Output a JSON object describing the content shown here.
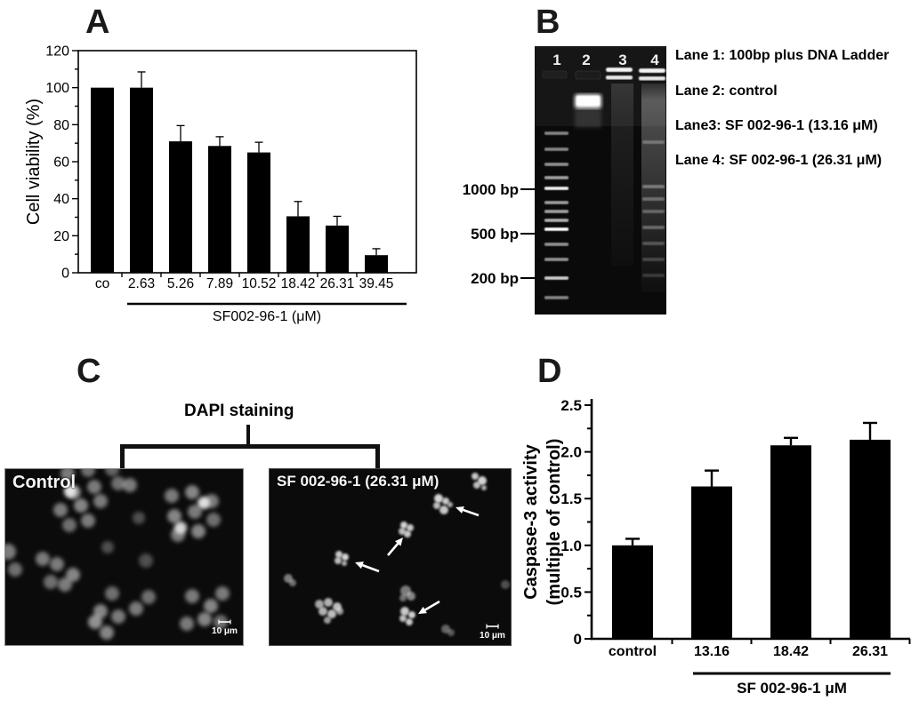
{
  "panels": {
    "a": "A",
    "b": "B",
    "c": "C",
    "d": "D"
  },
  "chart_data": [
    {
      "type": "bar",
      "panel": "A",
      "title": "",
      "categories": [
        "co",
        "2.63",
        "5.26",
        "7.89",
        "10.52",
        "18.42",
        "26.31",
        "39.45"
      ],
      "values": [
        100,
        100,
        71,
        68.5,
        65,
        30.5,
        25.5,
        9.5
      ],
      "errors": [
        0,
        8.5,
        8.5,
        5,
        5.5,
        8,
        5,
        3.5
      ],
      "xlabel": "SF002-96-1 (μM)",
      "ylabel": "Cell viability (%)",
      "ylim": [
        0,
        120
      ],
      "yticks": [
        "0",
        "20",
        "40",
        "60",
        "80",
        "100",
        "120"
      ],
      "ytick_step": 20,
      "minor_step": 10,
      "bar_color": "#000000",
      "frame": "box",
      "grid": false,
      "underline_groups": "2.63–39.45"
    },
    {
      "type": "bar",
      "panel": "D",
      "title": "",
      "categories": [
        "control",
        "13.16",
        "18.42",
        "26.31"
      ],
      "values": [
        1.0,
        1.63,
        2.07,
        2.13
      ],
      "errors": [
        0.07,
        0.17,
        0.08,
        0.18
      ],
      "xlabel": "SF 002-96-1 μM",
      "ylabel": "Caspase-3 activity\n(multiple of control)",
      "ylim": [
        0,
        2.5
      ],
      "yticks": [
        "0",
        "0.5",
        "1.0",
        "1.5",
        "2.0",
        "2.5"
      ],
      "ytick_step": 0.5,
      "minor_step": 0.25,
      "bar_color": "#000000",
      "frame": "open",
      "grid": false,
      "underline_groups": "13.16–26.31"
    }
  ],
  "panel_b": {
    "lane_numbers": [
      "1",
      "2",
      "3",
      "4"
    ],
    "markers": [
      {
        "label": "1000 bp"
      },
      {
        "label": "500 bp"
      },
      {
        "label": "200 bp"
      }
    ],
    "legend": [
      "Lane 1: 100bp plus DNA Ladder",
      "Lane 2: control",
      "Lane3: SF 002-96-1 (13.16 μM)",
      "Lane 4: SF 002-96-1 (26.31 μM)"
    ],
    "ladder_bands": [
      [
        98,
        0.5
      ],
      [
        116,
        0.5
      ],
      [
        133,
        0.55
      ],
      [
        148,
        0.62
      ],
      [
        160,
        0.95
      ],
      [
        176,
        0.6
      ],
      [
        186,
        0.62
      ],
      [
        196,
        0.68
      ],
      [
        206,
        1.0
      ],
      [
        223,
        0.55
      ],
      [
        240,
        0.55
      ],
      [
        261,
        0.8
      ],
      [
        283,
        0.5
      ]
    ],
    "lane4_bands": [
      [
        108,
        0.28
      ],
      [
        158,
        0.34
      ],
      [
        172,
        0.3
      ],
      [
        186,
        0.28
      ],
      [
        204,
        0.3
      ],
      [
        222,
        0.24
      ],
      [
        240,
        0.2
      ],
      [
        258,
        0.16
      ]
    ]
  },
  "panel_c": {
    "title": "DAPI staining",
    "control_label": "Control",
    "treated_label": "SF 002-96-1 (26.31 μM)",
    "scale_label": "10 μm",
    "control_nuclei": [
      [
        70,
        5,
        8,
        0.5
      ],
      [
        93,
        1,
        8,
        0.45
      ],
      [
        120,
        0,
        8,
        0.4
      ],
      [
        140,
        18,
        8,
        0.5
      ],
      [
        77,
        26,
        8,
        0.55
      ],
      [
        100,
        20,
        8,
        0.5
      ],
      [
        127,
        16,
        8,
        0.45
      ],
      [
        62,
        46,
        8,
        0.5
      ],
      [
        85,
        41,
        8,
        0.55
      ],
      [
        107,
        36,
        8,
        0.5
      ],
      [
        72,
        63,
        8,
        0.45
      ],
      [
        93,
        58,
        8,
        0.5
      ],
      [
        73,
        25,
        7,
        0.95
      ],
      [
        150,
        55,
        7,
        0.3
      ],
      [
        187,
        30,
        8,
        0.5
      ],
      [
        210,
        26,
        8,
        0.55
      ],
      [
        232,
        36,
        8,
        0.5
      ],
      [
        190,
        53,
        8,
        0.55
      ],
      [
        213,
        48,
        8,
        0.5
      ],
      [
        234,
        57,
        8,
        0.45
      ],
      [
        194,
        74,
        8,
        0.5
      ],
      [
        217,
        70,
        8,
        0.55
      ],
      [
        223,
        38,
        7,
        0.95
      ],
      [
        197,
        66,
        7,
        0.9
      ],
      [
        3,
        93,
        9,
        0.5
      ],
      [
        11,
        113,
        8,
        0.45
      ],
      [
        42,
        101,
        8,
        0.5
      ],
      [
        58,
        107,
        8,
        0.5
      ],
      [
        67,
        130,
        8,
        0.5
      ],
      [
        51,
        127,
        8,
        0.45
      ],
      [
        76,
        119,
        8,
        0.55
      ],
      [
        115,
        88,
        7,
        0.3
      ],
      [
        120,
        140,
        8,
        0.45
      ],
      [
        107,
        160,
        8,
        0.55
      ],
      [
        127,
        166,
        8,
        0.5
      ],
      [
        147,
        157,
        8,
        0.5
      ],
      [
        161,
        144,
        8,
        0.45
      ],
      [
        158,
        103,
        8,
        0.3
      ],
      [
        210,
        143,
        8,
        0.5
      ],
      [
        231,
        154,
        8,
        0.55
      ],
      [
        244,
        140,
        8,
        0.5
      ],
      [
        224,
        169,
        8,
        0.55
      ],
      [
        204,
        174,
        8,
        0.5
      ],
      [
        242,
        172,
        8,
        0.45
      ],
      [
        101,
        172,
        8,
        0.6
      ],
      [
        114,
        184,
        8,
        0.55
      ]
    ],
    "treated_fragments": [
      [
        231,
        8,
        4,
        0.85
      ],
      [
        239,
        13,
        5,
        0.9
      ],
      [
        233,
        18,
        4,
        0.8
      ],
      [
        241,
        21,
        3,
        0.75
      ],
      [
        190,
        33,
        5,
        0.9
      ],
      [
        198,
        36,
        4,
        0.85
      ],
      [
        188,
        41,
        4,
        0.8
      ],
      [
        196,
        46,
        5,
        0.85
      ],
      [
        203,
        40,
        3,
        0.75
      ],
      [
        151,
        63,
        4,
        0.9
      ],
      [
        158,
        66,
        4,
        0.85
      ],
      [
        149,
        70,
        4,
        0.8
      ],
      [
        155,
        73,
        4,
        0.85
      ],
      [
        78,
        96,
        4,
        0.85
      ],
      [
        85,
        99,
        4,
        0.9
      ],
      [
        77,
        103,
        4,
        0.8
      ],
      [
        84,
        106,
        3,
        0.75
      ],
      [
        21,
        123,
        5,
        0.5
      ],
      [
        26,
        128,
        4,
        0.45
      ],
      [
        56,
        152,
        5,
        0.7
      ],
      [
        66,
        150,
        5,
        0.75
      ],
      [
        76,
        155,
        5,
        0.8
      ],
      [
        60,
        160,
        5,
        0.75
      ],
      [
        70,
        163,
        5,
        0.8
      ],
      [
        79,
        160,
        4,
        0.65
      ],
      [
        65,
        170,
        4,
        0.65
      ],
      [
        153,
        137,
        6,
        0.5
      ],
      [
        159,
        143,
        5,
        0.55
      ],
      [
        150,
        145,
        4,
        0.45
      ],
      [
        152,
        160,
        5,
        0.85
      ],
      [
        160,
        164,
        4,
        0.9
      ],
      [
        150,
        168,
        4,
        0.8
      ],
      [
        157,
        172,
        4,
        0.85
      ],
      [
        198,
        180,
        5,
        0.4
      ],
      [
        204,
        184,
        4,
        0.35
      ],
      [
        265,
        130,
        5,
        0.3
      ]
    ],
    "arrows": [
      [
        235,
        52,
        209,
        43
      ],
      [
        133,
        97,
        150,
        77
      ],
      [
        123,
        115,
        96,
        105
      ],
      [
        191,
        149,
        167,
        163
      ]
    ]
  }
}
